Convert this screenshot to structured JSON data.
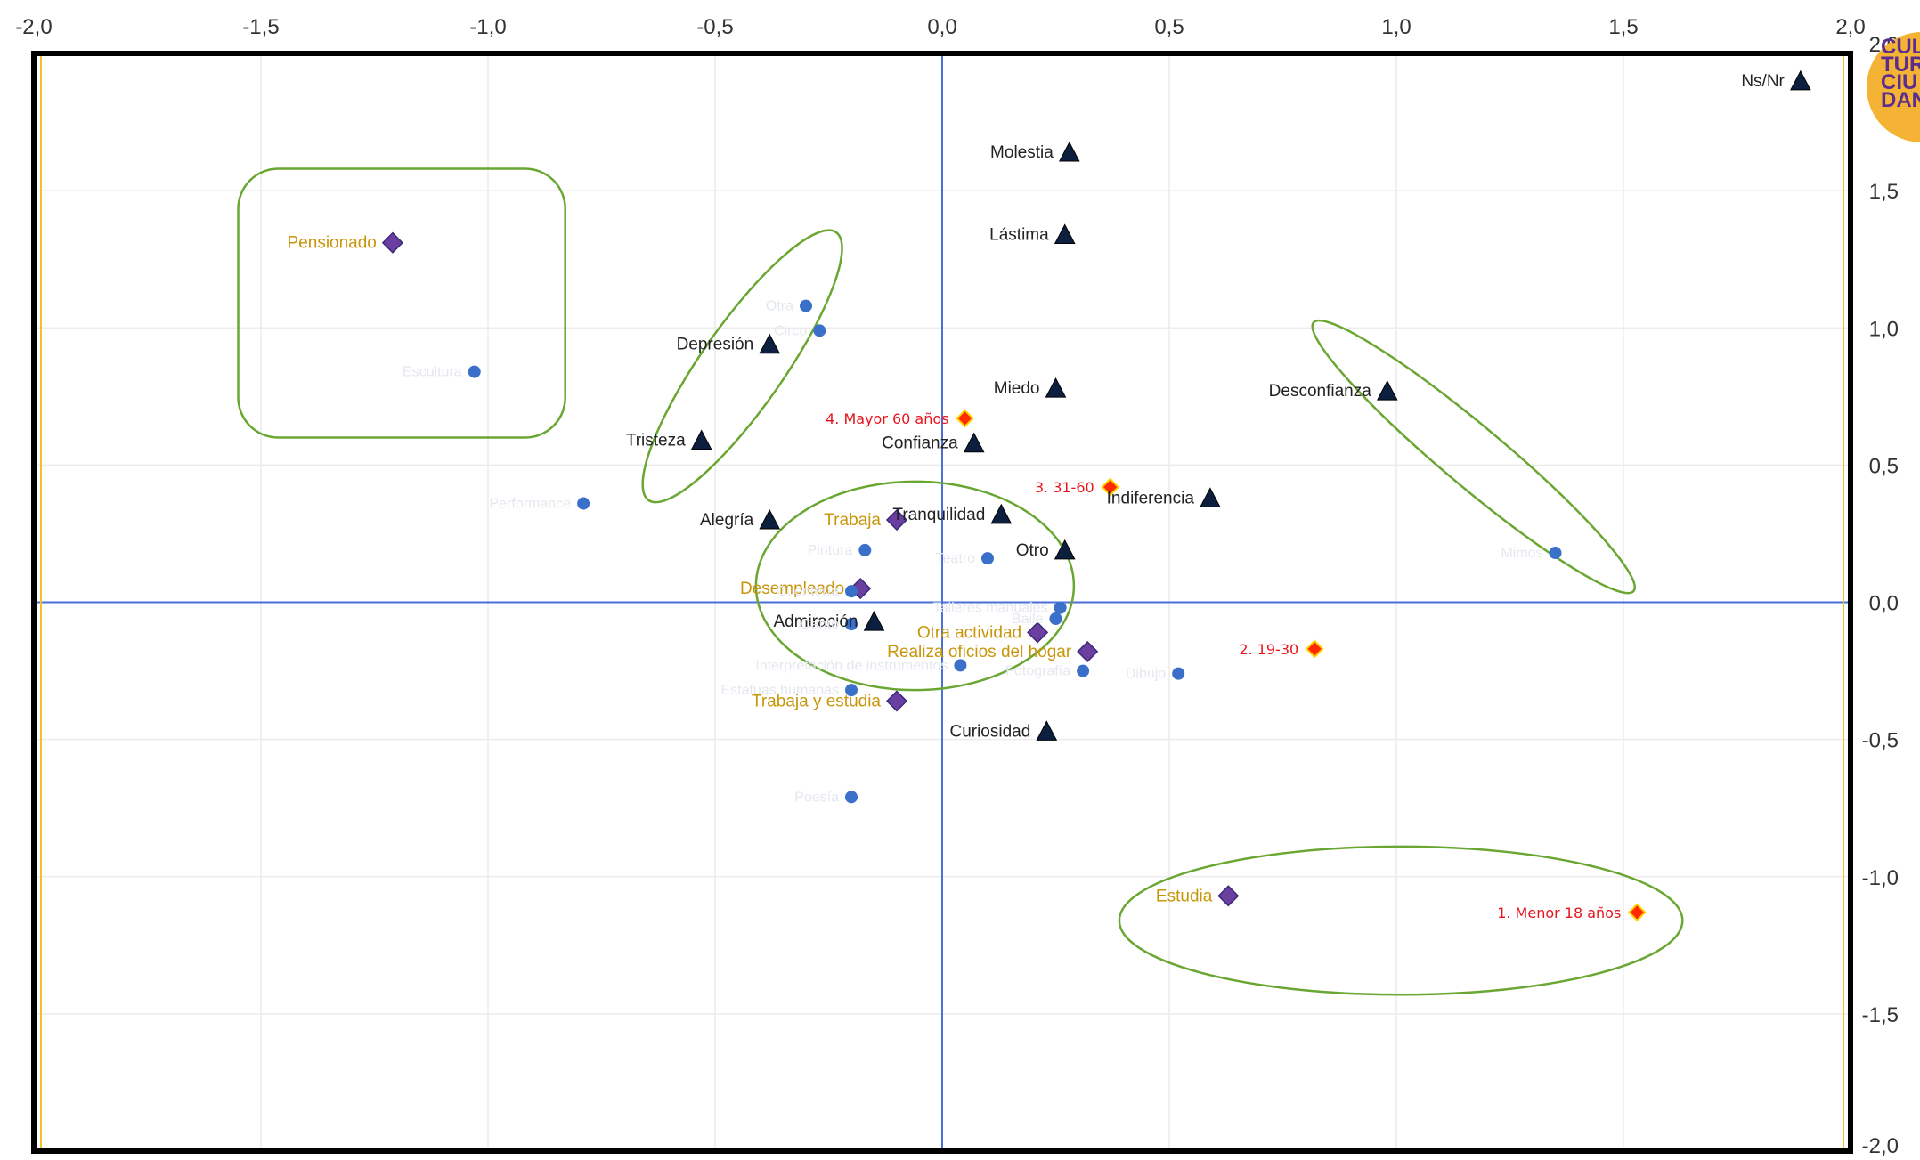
{
  "colors": {
    "frame": "#000000",
    "axis_line": "#4a6fd6",
    "grid": "#ececec",
    "ellipse": "#6aa632",
    "stimulus_marker": "#0c1f3f",
    "occupation_marker": "#6b3fa0",
    "age_marker_fill": "#ff2a00",
    "age_marker_stroke": "#ffd400",
    "art_marker": "#3a70c9",
    "logo_bg": "#f5b335",
    "logo_text": "#5b2d8e"
  },
  "logo": {
    "lines": [
      "CUL",
      "TUR",
      "CIU",
      "DAN"
    ],
    "icon": "culturaciudadana-logo"
  },
  "chart_data": {
    "type": "scatter",
    "title": "",
    "xlabel": "",
    "ylabel": "",
    "xlim": [
      -2.0,
      2.0
    ],
    "ylim": [
      -2.0,
      2.0
    ],
    "grid": true,
    "x_tick_labels": [
      "-2,0",
      "-1,5",
      "-1,0",
      "-0,5",
      "0,0",
      "0,5",
      "1,0",
      "1,5",
      "2,0"
    ],
    "y_tick_labels": [
      "2,0",
      "1,5",
      "1,0",
      "0,5",
      "0,0",
      "-0,5",
      "-1,0",
      "-1,5",
      "-2,0"
    ],
    "series": [
      {
        "marker": "triangle",
        "points": [
          {
            "label": "Ns/Nr",
            "x": 1.89,
            "y": 1.9
          },
          {
            "label": "Molestia",
            "x": 0.28,
            "y": 1.64
          },
          {
            "label": "Lástima",
            "x": 0.27,
            "y": 1.34
          },
          {
            "label": "Depresión",
            "x": -0.38,
            "y": 0.94
          },
          {
            "label": "Miedo",
            "x": 0.25,
            "y": 0.78
          },
          {
            "label": "Desconfianza",
            "x": 0.98,
            "y": 0.77
          },
          {
            "label": "Tristeza",
            "x": -0.53,
            "y": 0.59
          },
          {
            "label": "Confianza",
            "x": 0.07,
            "y": 0.58
          },
          {
            "label": "Indiferencia",
            "x": 0.59,
            "y": 0.38
          },
          {
            "label": "Alegría",
            "x": -0.38,
            "y": 0.3
          },
          {
            "label": "Tranquilidad",
            "x": 0.13,
            "y": 0.32
          },
          {
            "label": "Otro",
            "x": 0.27,
            "y": 0.19
          },
          {
            "label": "Admiración",
            "x": -0.15,
            "y": -0.07
          },
          {
            "label": "Curiosidad",
            "x": 0.23,
            "y": -0.47
          }
        ]
      },
      {
        "marker": "diamond",
        "points": [
          {
            "label": "Pensionado",
            "x": -1.21,
            "y": 1.31
          },
          {
            "label": "Trabaja",
            "x": -0.1,
            "y": 0.3
          },
          {
            "label": "Desempleado",
            "x": -0.18,
            "y": 0.05
          },
          {
            "label": "Otra actividad",
            "x": 0.21,
            "y": -0.11
          },
          {
            "label": "Realiza oficios del hogar",
            "x": 0.32,
            "y": -0.18
          },
          {
            "label": "Trabaja y estudia",
            "x": -0.1,
            "y": -0.36
          },
          {
            "label": "Estudia",
            "x": 0.63,
            "y": -1.07
          }
        ]
      },
      {
        "marker": "diamond-small",
        "points": [
          {
            "label": "4. Mayor 60 años",
            "x": 0.05,
            "y": 0.67
          },
          {
            "label": "3. 31-60",
            "x": 0.37,
            "y": 0.42
          },
          {
            "label": "2. 19-30",
            "x": 0.82,
            "y": -0.17
          },
          {
            "label": "1. Menor 18 años",
            "x": 1.53,
            "y": -1.13
          }
        ]
      },
      {
        "marker": "circle",
        "points": [
          {
            "label": "Otra",
            "x": -0.3,
            "y": 1.08
          },
          {
            "label": "Circo",
            "x": -0.27,
            "y": 0.99
          },
          {
            "label": "Escultura",
            "x": -1.03,
            "y": 0.84
          },
          {
            "label": "Performance",
            "x": -0.79,
            "y": 0.36
          },
          {
            "label": "Pintura",
            "x": -0.17,
            "y": 0.19
          },
          {
            "label": "Teatro",
            "x": 0.1,
            "y": 0.16
          },
          {
            "label": "Cuentería",
            "x": -0.2,
            "y": 0.04
          },
          {
            "label": "Talleres manuales",
            "x": 0.26,
            "y": -0.02
          },
          {
            "label": "Baile",
            "x": 0.25,
            "y": -0.06
          },
          {
            "label": "Canto",
            "x": -0.2,
            "y": -0.08
          },
          {
            "label": "Interpretación de instrumentos",
            "x": 0.04,
            "y": -0.23
          },
          {
            "label": "Fotografía",
            "x": 0.31,
            "y": -0.25
          },
          {
            "label": "Dibujo",
            "x": 0.52,
            "y": -0.26
          },
          {
            "label": "Estatuas humanas",
            "x": -0.2,
            "y": -0.32
          },
          {
            "label": "Mimos",
            "x": 1.35,
            "y": 0.18
          },
          {
            "label": "Poesía",
            "x": -0.2,
            "y": -0.71
          }
        ]
      }
    ],
    "ellipses": [
      {
        "shape": "rounded-rect",
        "x_range": [
          -1.55,
          -0.83
        ],
        "y_range": [
          0.6,
          1.58
        ]
      },
      {
        "center": [
          -0.44,
          0.86
        ],
        "rx": 0.36,
        "ry": 0.15,
        "angle_deg": -55
      },
      {
        "center": [
          -0.06,
          0.06
        ],
        "rx": 0.35,
        "ry": 0.38,
        "angle_deg": 0
      },
      {
        "center": [
          1.17,
          0.53
        ],
        "rx": 0.46,
        "ry": 0.11,
        "angle_deg": 40
      },
      {
        "center": [
          1.01,
          -1.16
        ],
        "rx": 0.62,
        "ry": 0.27,
        "angle_deg": 0
      }
    ]
  }
}
